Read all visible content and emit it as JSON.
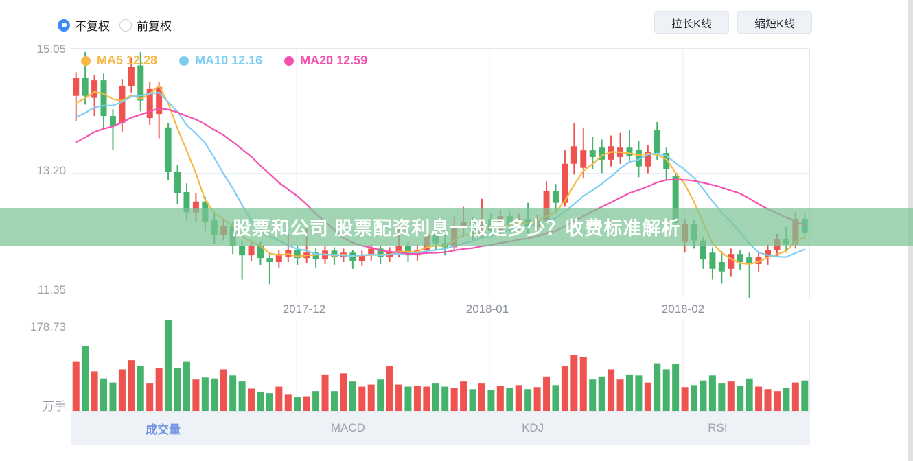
{
  "toolbar": {
    "radios": [
      {
        "label": "不复权",
        "selected": true
      },
      {
        "label": "前复权",
        "selected": false
      }
    ],
    "buttons": [
      {
        "label": "拉长K线"
      },
      {
        "label": "缩短K线"
      }
    ]
  },
  "banner": {
    "text": "股票和公司 股票配资利息一般是多少？收费标准解析",
    "bg": "rgba(124,196,148,0.72)"
  },
  "tabs": [
    {
      "label": "成交量",
      "active": true
    },
    {
      "label": "MACD",
      "active": false
    },
    {
      "label": "KDJ",
      "active": false
    },
    {
      "label": "RSI",
      "active": false
    }
  ],
  "chart_data": {
    "type": "candlestick+volume",
    "price_axis": {
      "max": 15.05,
      "min": 11.35,
      "ticks": [
        "15.05",
        "13.20",
        "11.35"
      ],
      "mid_grid_value": 13.2
    },
    "x_axis": {
      "labels": [
        "2017-12",
        "2018-01",
        "2018-02"
      ],
      "fractions": [
        0.3051,
        0.5665,
        0.8288
      ]
    },
    "volume_axis": {
      "max": 178.73,
      "max_label": "178.73",
      "unit": "万手"
    },
    "legend": [
      {
        "name": "MA5",
        "value": "12.28",
        "label": "MA5 12.28",
        "window": 5,
        "color": "#f6b842"
      },
      {
        "name": "MA10",
        "value": "12.16",
        "label": "MA10 12.16",
        "window": 10,
        "color": "#7ecef4"
      },
      {
        "name": "MA20",
        "value": "12.59",
        "label": "MA20 12.59",
        "window": 20,
        "color": "#f450b0"
      }
    ],
    "colors": {
      "up": "#ef5350",
      "down": "#45b36b",
      "grid": "#e9eef4"
    },
    "ma_prehistory": [
      12.9,
      13.0,
      13.1,
      13.2,
      13.3,
      13.35,
      13.4,
      13.5,
      13.55,
      13.6,
      13.7,
      13.75,
      13.8,
      13.9,
      13.95,
      14.0,
      14.1,
      14.2,
      14.3
    ],
    "candles": [
      [
        14.35,
        14.62,
        13.98,
        14.7
      ],
      [
        14.62,
        14.35,
        14.22,
        15.0
      ],
      [
        14.32,
        14.58,
        14.05,
        14.66
      ],
      [
        14.58,
        14.05,
        13.88,
        14.68
      ],
      [
        14.05,
        13.9,
        13.55,
        14.15
      ],
      [
        13.95,
        14.5,
        13.82,
        14.6
      ],
      [
        14.5,
        14.78,
        14.4,
        14.92
      ],
      [
        14.8,
        14.28,
        14.12,
        15.0
      ],
      [
        14.02,
        14.45,
        13.92,
        14.55
      ],
      [
        14.08,
        14.48,
        13.72,
        14.56
      ],
      [
        13.88,
        13.22,
        13.1,
        13.95
      ],
      [
        13.22,
        12.9,
        12.74,
        13.32
      ],
      [
        12.92,
        12.62,
        12.5,
        13.05
      ],
      [
        12.62,
        12.78,
        12.48,
        12.9
      ],
      [
        12.78,
        12.48,
        12.35,
        12.85
      ],
      [
        12.5,
        12.28,
        12.15,
        12.6
      ],
      [
        12.28,
        12.42,
        12.2,
        12.52
      ],
      [
        12.42,
        12.12,
        12.0,
        12.48
      ],
      [
        12.12,
        11.98,
        11.62,
        12.2
      ],
      [
        11.98,
        12.12,
        11.9,
        12.2
      ],
      [
        12.12,
        11.94,
        11.84,
        12.18
      ],
      [
        11.94,
        11.88,
        11.55,
        12.0
      ],
      [
        11.88,
        12.0,
        11.8,
        12.06
      ],
      [
        11.96,
        12.06,
        11.88,
        12.3
      ],
      [
        12.06,
        11.94,
        11.84,
        12.12
      ],
      [
        11.94,
        12.02,
        11.86,
        12.4
      ],
      [
        12.02,
        11.92,
        11.8,
        12.08
      ],
      [
        11.92,
        12.05,
        11.85,
        12.12
      ],
      [
        12.05,
        11.95,
        11.84,
        12.1
      ],
      [
        11.95,
        12.02,
        11.88,
        12.08
      ],
      [
        12.02,
        11.9,
        11.78,
        12.06
      ],
      [
        11.9,
        11.98,
        11.82,
        12.05
      ],
      [
        11.98,
        12.08,
        11.9,
        12.15
      ],
      [
        12.08,
        11.96,
        11.85,
        12.12
      ],
      [
        11.96,
        12.04,
        11.88,
        12.1
      ],
      [
        12.04,
        12.12,
        11.95,
        12.45
      ],
      [
        12.12,
        11.98,
        11.88,
        12.18
      ],
      [
        11.98,
        12.06,
        11.9,
        12.14
      ],
      [
        12.06,
        12.3,
        12.0,
        12.38
      ],
      [
        12.3,
        12.16,
        12.05,
        12.36
      ],
      [
        12.16,
        12.1,
        11.98,
        12.4
      ],
      [
        12.1,
        12.38,
        12.04,
        12.56
      ],
      [
        12.38,
        12.48,
        12.26,
        12.7
      ],
      [
        12.48,
        12.3,
        12.18,
        12.55
      ],
      [
        12.3,
        12.52,
        12.22,
        12.82
      ],
      [
        12.52,
        12.34,
        12.24,
        12.6
      ],
      [
        12.34,
        12.56,
        12.26,
        12.66
      ],
      [
        12.56,
        12.44,
        12.32,
        12.64
      ],
      [
        12.44,
        12.52,
        12.36,
        12.6
      ],
      [
        12.52,
        12.4,
        12.28,
        12.76
      ],
      [
        12.4,
        12.5,
        12.32,
        12.58
      ],
      [
        12.5,
        12.94,
        12.44,
        13.08
      ],
      [
        12.94,
        12.76,
        12.6,
        13.04
      ],
      [
        12.76,
        13.34,
        12.7,
        13.54
      ],
      [
        13.34,
        13.6,
        13.18,
        13.94
      ],
      [
        13.28,
        13.54,
        13.12,
        13.88
      ],
      [
        13.54,
        13.44,
        13.26,
        13.74
      ],
      [
        13.58,
        13.4,
        13.2,
        13.7
      ],
      [
        13.4,
        13.6,
        13.3,
        13.76
      ],
      [
        13.44,
        13.58,
        13.34,
        13.8
      ],
      [
        13.58,
        13.46,
        13.36,
        13.84
      ],
      [
        13.55,
        13.3,
        13.14,
        13.68
      ],
      [
        13.3,
        13.52,
        13.2,
        13.62
      ],
      [
        13.84,
        13.5,
        13.4,
        13.96
      ],
      [
        13.5,
        13.26,
        13.1,
        13.58
      ],
      [
        13.16,
        12.46,
        12.34,
        13.22
      ],
      [
        12.18,
        12.44,
        12.02,
        12.52
      ],
      [
        12.44,
        12.2,
        12.08,
        12.5
      ],
      [
        12.2,
        11.92,
        11.78,
        12.26
      ],
      [
        12.02,
        11.78,
        11.62,
        12.1
      ],
      [
        11.88,
        11.74,
        11.56,
        12.04
      ],
      [
        11.78,
        12.0,
        11.66,
        12.08
      ],
      [
        12.0,
        11.88,
        11.76,
        12.06
      ],
      [
        11.95,
        11.85,
        11.31,
        12.02
      ],
      [
        11.85,
        11.96,
        11.74,
        12.04
      ],
      [
        11.96,
        12.06,
        11.84,
        12.14
      ],
      [
        12.06,
        12.22,
        11.96,
        12.3
      ],
      [
        12.22,
        12.14,
        12.02,
        12.4
      ],
      [
        12.14,
        12.52,
        12.08,
        12.62
      ],
      [
        12.52,
        12.32,
        12.22,
        12.6
      ]
    ],
    "volumes": [
      98,
      128,
      78,
      64,
      56,
      82,
      100,
      88,
      54,
      84,
      178.73,
      84,
      98,
      62,
      66,
      64,
      82,
      70,
      58,
      44,
      38,
      35,
      48,
      32,
      27,
      29,
      39,
      72,
      39,
      74,
      58,
      48,
      52,
      62,
      88,
      52,
      48,
      50,
      48,
      54,
      48,
      46,
      58,
      43,
      54,
      41,
      49,
      45,
      51,
      43,
      47,
      68,
      51,
      88,
      110,
      106,
      62,
      68,
      82,
      62,
      72,
      70,
      56,
      94,
      82,
      92,
      47,
      51,
      60,
      70,
      54,
      58,
      50,
      64,
      48,
      43,
      39,
      46,
      56,
      60
    ]
  }
}
